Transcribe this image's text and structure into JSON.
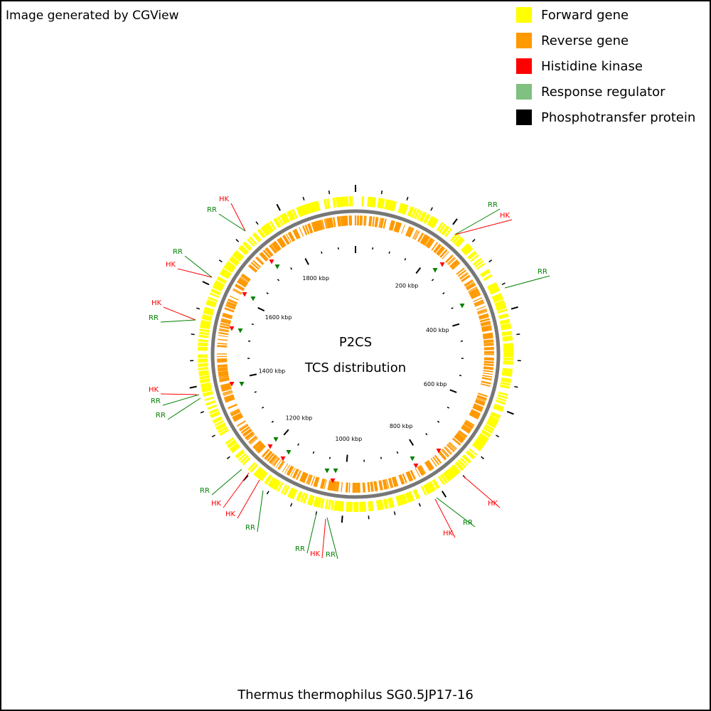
{
  "header": {
    "credit": "Image generated by CGView"
  },
  "legend": [
    {
      "label": "Forward gene",
      "color": "#ffff00"
    },
    {
      "label": "Reverse gene",
      "color": "#ff9900"
    },
    {
      "label": "Histidine kinase",
      "color": "#ff0000"
    },
    {
      "label": "Response regulator",
      "color": "#80c080"
    },
    {
      "label": "Phosphotransfer protein",
      "color": "#000000"
    }
  ],
  "center": {
    "title": "P2CS",
    "subtitle": "TCS distribution"
  },
  "scale_labels": [
    "200 kbp",
    "400 kbp",
    "600 kbp",
    "800 kbp",
    "1000 kbp",
    "1200 kbp",
    "1400 kbp",
    "1600 kbp",
    "1800 kbp"
  ],
  "callouts": [
    {
      "label": "HK",
      "color": "#ff0000"
    },
    {
      "label": "RR",
      "color": "#008000"
    },
    {
      "label": "RR",
      "color": "#008000"
    },
    {
      "label": "HK",
      "color": "#ff0000"
    },
    {
      "label": "RR",
      "color": "#008000"
    },
    {
      "label": "RR",
      "color": "#008000"
    },
    {
      "label": "HK",
      "color": "#ff0000"
    },
    {
      "label": "HK",
      "color": "#ff0000"
    },
    {
      "label": "RR",
      "color": "#008000"
    },
    {
      "label": "HK",
      "color": "#ff0000"
    },
    {
      "label": "RR",
      "color": "#008000"
    },
    {
      "label": "RR",
      "color": "#008000"
    },
    {
      "label": "RR",
      "color": "#008000"
    },
    {
      "label": "HK",
      "color": "#ff0000"
    },
    {
      "label": "HK",
      "color": "#ff0000"
    },
    {
      "label": "RR",
      "color": "#008000"
    },
    {
      "label": "RR",
      "color": "#008000"
    },
    {
      "label": "HK",
      "color": "#ff0000"
    },
    {
      "label": "RR",
      "color": "#008000"
    },
    {
      "label": "HK",
      "color": "#ff0000"
    },
    {
      "label": "RR",
      "color": "#008000"
    },
    {
      "label": "HK",
      "color": "#ff0000"
    }
  ],
  "footer": "Thermus thermophilus SG0.5JP17-16"
}
